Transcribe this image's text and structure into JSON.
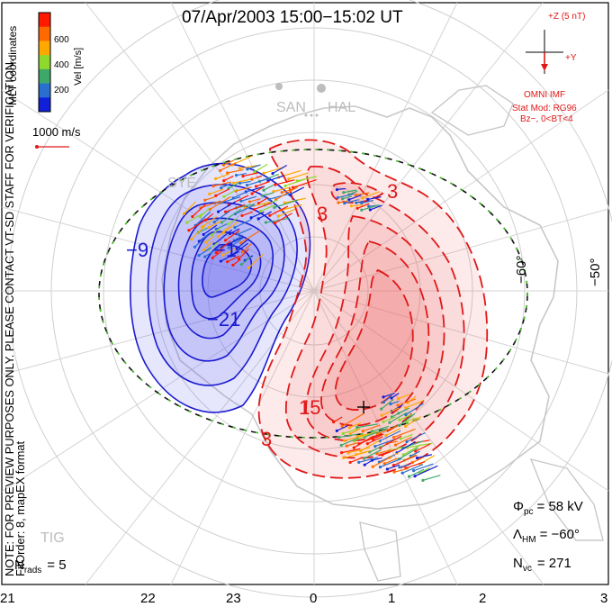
{
  "title": "07/Apr/2003 15:00−15:02 UT",
  "colorbar": {
    "label": "Vel [m/s]",
    "ticks": [
      "600",
      "400",
      "200"
    ],
    "colors": [
      "#ff1a00",
      "#ff6a00",
      "#ffa800",
      "#8fd82c",
      "#3da86a",
      "#2a6fcf",
      "#1020d8"
    ]
  },
  "vector_scale_label": "1000 m/s",
  "side_text": {
    "mlt_coords": "MLT coordinates",
    "note": "NOTE: FOR PREVIEW PURPOSES ONLY. PLEASE CONTACT VT-SD STAFF FOR VERIFICATION.",
    "fit": "FitOrder: 8, mapEX format"
  },
  "imf": {
    "z_label": "+Z (5 nT)",
    "y_label": "+Y",
    "source": "OMNI IMF",
    "model": "Stat Mod: RG96",
    "condition": "Bz−, 0<BT<4"
  },
  "stations": [
    "SAN",
    "HAL",
    "SYE",
    "TIG"
  ],
  "latitude_labels": [
    "−60°",
    "−50°"
  ],
  "mlt_ticks": [
    "21",
    "22",
    "23",
    "0",
    "1",
    "2",
    "3"
  ],
  "contour_labels": [
    "−9",
    "−1",
    "−21",
    "3",
    "3",
    "15",
    "3"
  ],
  "stats": {
    "phi_label": "Φ",
    "phi_sub": "pc",
    "phi_value": "= 58 kV",
    "lambda_label": "Λ",
    "lambda_sub": "HM",
    "lambda_value": "= −60°",
    "nvc_label": "N",
    "nvc_sub": "vc",
    "nvc_value": "= 271",
    "nrads_label": "N",
    "nrads_sub": "rads",
    "nrads_value": "= 5"
  },
  "colors": {
    "negative_fill": "#5a5af0",
    "negative_line": "#1a1ad0",
    "positive_fill": "#f06060",
    "positive_line": "#e01818",
    "boundary_green": "#44cc22",
    "continent": "#c8c8c8"
  }
}
